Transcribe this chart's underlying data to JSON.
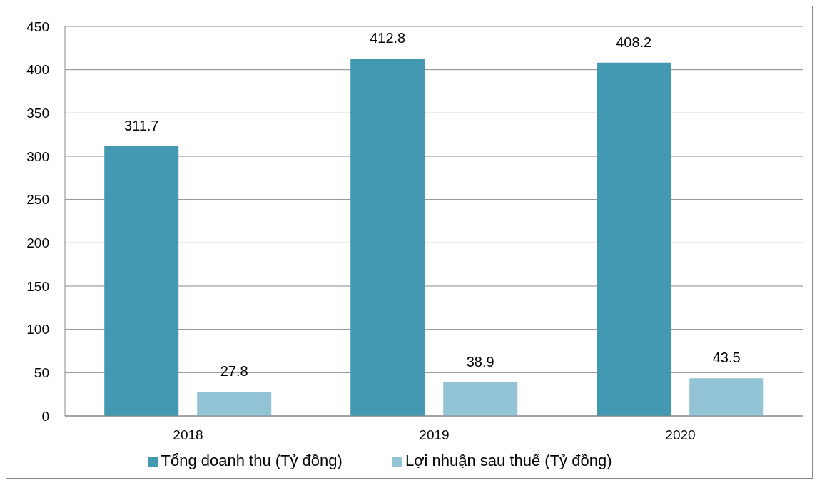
{
  "chart_data": {
    "type": "bar",
    "categories": [
      "2018",
      "2019",
      "2020"
    ],
    "series": [
      {
        "name": "Tổng doanh thu (Tỷ đồng)",
        "color": "#4399b1",
        "values": [
          311.7,
          412.8,
          408.2
        ]
      },
      {
        "name": "Lợi nhuận sau thuế (Tỷ đồng)",
        "color": "#93c4d6",
        "values": [
          27.8,
          38.9,
          43.5
        ]
      }
    ],
    "ylim": [
      0,
      450
    ],
    "yticks": [
      0,
      50,
      100,
      150,
      200,
      250,
      300,
      350,
      400,
      450
    ],
    "grid": "y",
    "legend": "bottom",
    "data_labels": true
  }
}
